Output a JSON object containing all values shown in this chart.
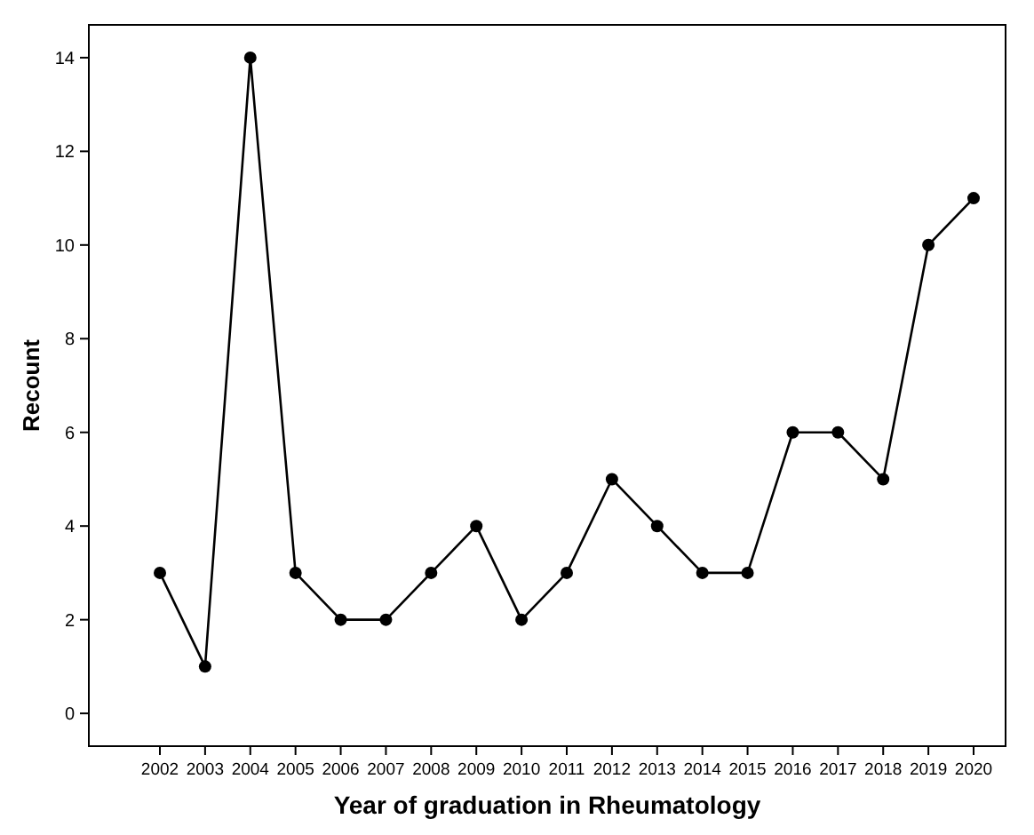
{
  "chart_data": {
    "type": "line",
    "xlabel": "Year of graduation in Rheumatology",
    "ylabel": "Recount",
    "categories": [
      "2002",
      "2003",
      "2004",
      "2005",
      "2006",
      "2007",
      "2008",
      "2009",
      "2010",
      "2011",
      "2012",
      "2013",
      "2014",
      "2015",
      "2016",
      "2017",
      "2018",
      "2019",
      "2020"
    ],
    "series": [
      {
        "color": "#000000",
        "values": [
          3,
          1,
          14,
          3,
          2,
          2,
          3,
          4,
          2,
          3,
          5,
          4,
          3,
          3,
          6,
          6,
          5,
          10,
          11
        ]
      }
    ],
    "ylim": [
      -0.7,
      14.7
    ],
    "yticks": [
      0,
      2,
      4,
      6,
      8,
      10,
      12,
      14
    ],
    "grid": false,
    "marker": "circle",
    "line_style": "solid"
  }
}
